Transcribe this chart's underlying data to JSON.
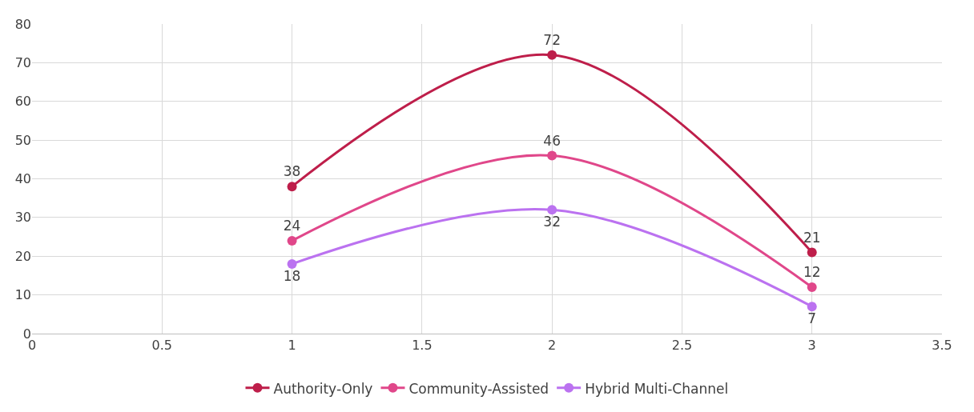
{
  "chart_data": {
    "type": "line",
    "x": [
      1,
      2,
      3
    ],
    "series": [
      {
        "name": "Authority-Only",
        "color": "#be1e4a",
        "values": [
          38,
          72,
          21
        ]
      },
      {
        "name": "Community-Assisted",
        "color": "#e0478a",
        "values": [
          24,
          46,
          12
        ]
      },
      {
        "name": "Hybrid Multi-Channel",
        "color": "#bb72f0",
        "values": [
          18,
          32,
          7
        ]
      }
    ],
    "xlim": [
      0,
      3.5
    ],
    "xticks": [
      0,
      0.5,
      1,
      1.5,
      2,
      2.5,
      3,
      3.5
    ],
    "ylim": [
      0,
      80
    ],
    "yticks": [
      0,
      10,
      20,
      30,
      40,
      50,
      60,
      70,
      80
    ],
    "grid": true,
    "legend": "bottom",
    "marker": "circle",
    "line_style": "solid",
    "data_labels": true
  }
}
